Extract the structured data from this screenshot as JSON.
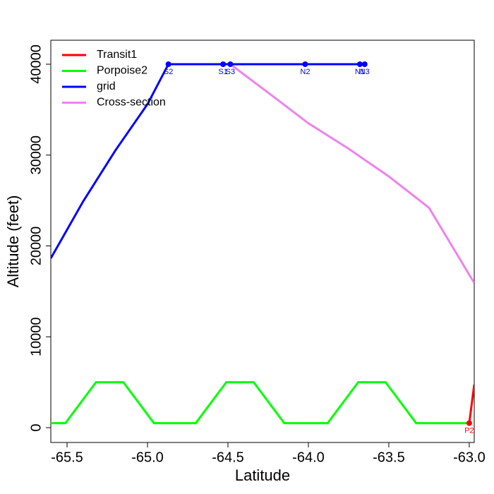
{
  "chart_data": {
    "type": "line",
    "xlabel": "Latitude",
    "ylabel": "Altitude (feet)",
    "xlim": [
      -65.601,
      -62.969
    ],
    "ylim": [
      -1631,
      42640
    ],
    "xticks": [
      -65.5,
      {
        "value": -65,
        "label": "-65.0"
      },
      -64.5,
      {
        "value": -64,
        "label": "-64.0"
      },
      -63.5,
      {
        "value": -63,
        "label": "-63.0"
      }
    ],
    "yticks": [
      0,
      10000,
      20000,
      30000,
      40000
    ],
    "legend": "top-left",
    "series": [
      {
        "name": "Transit1",
        "color": "#ff0000",
        "x": [
          -63.0,
          -62.969
        ],
        "values": [
          500,
          4740
        ]
      },
      {
        "name": "Porpoise2",
        "color": "#00ff00",
        "x": [
          -65.601,
          -65.51,
          -65.32,
          -65.15,
          -64.96,
          -64.7,
          -64.51,
          -64.34,
          -64.15,
          -63.88,
          -63.69,
          -63.52,
          -63.33,
          -63.07,
          -63.0
        ],
        "values": [
          500,
          500,
          5000,
          5000,
          500,
          500,
          5000,
          5000,
          500,
          500,
          5000,
          5000,
          500,
          500,
          500
        ]
      },
      {
        "name": "grid",
        "color": "#0000ff",
        "x": [
          -65.601,
          -65.4,
          -65.2,
          -65.0,
          -64.87,
          -64.53,
          -64.485,
          -64.02,
          -63.68,
          -63.65
        ],
        "values": [
          18640,
          24900,
          30500,
          35600,
          40000,
          40000,
          40000,
          40000,
          40000,
          40000
        ]
      },
      {
        "name": "Cross-section",
        "color": "#ee82ee",
        "x": [
          -64.485,
          -64.2,
          -64.0,
          -63.75,
          -63.5,
          -63.25,
          -62.969
        ],
        "values": [
          40000,
          36200,
          33500,
          30700,
          27650,
          24200,
          15920
        ]
      }
    ],
    "points": [
      {
        "label": "S2",
        "x": -64.87,
        "y": 40000,
        "color": "#0000ff"
      },
      {
        "label": "S1",
        "x": -64.53,
        "y": 40000,
        "color": "#0000ff"
      },
      {
        "label": "S3",
        "x": -64.485,
        "y": 40000,
        "color": "#0000ff"
      },
      {
        "label": "N2",
        "x": -64.02,
        "y": 40000,
        "color": "#0000ff"
      },
      {
        "label": "N1",
        "x": -63.68,
        "y": 40000,
        "color": "#0000ff"
      },
      {
        "label": "N3",
        "x": -63.65,
        "y": 40000,
        "color": "#0000ff"
      },
      {
        "label": "P2",
        "x": -63.0,
        "y": 500,
        "color": "#ff0000"
      }
    ]
  }
}
